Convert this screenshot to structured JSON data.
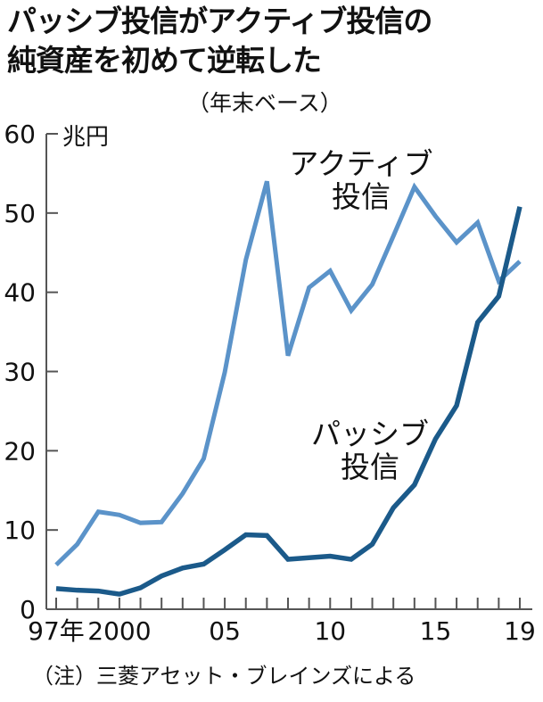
{
  "chart_data": {
    "type": "line",
    "title": [
      "パッシブ投信がアクティブ投信の",
      "純資産を初めて逆転した"
    ],
    "subtitle": "（年末ベース）",
    "ylabel": "兆円",
    "ylim": [
      0,
      60
    ],
    "yticks": [
      0,
      10,
      20,
      30,
      40,
      50,
      60
    ],
    "x": [
      1997,
      1998,
      1999,
      2000,
      2001,
      2002,
      2003,
      2004,
      2005,
      2006,
      2007,
      2008,
      2009,
      2010,
      2011,
      2012,
      2013,
      2014,
      2015,
      2016,
      2017,
      2018,
      2019
    ],
    "xtick_labels": [
      {
        "year": 1997,
        "label": "97年"
      },
      {
        "year": 2000,
        "label": "2000"
      },
      {
        "year": 2005,
        "label": "05"
      },
      {
        "year": 2010,
        "label": "10"
      },
      {
        "year": 2015,
        "label": "15"
      },
      {
        "year": 2019,
        "label": "19"
      }
    ],
    "grid": false,
    "series": [
      {
        "name": "アクティブ投信",
        "label_lines": [
          "アクティブ",
          "投信"
        ],
        "color": "#5b93c9",
        "values": [
          5.6,
          8.2,
          12.3,
          11.9,
          10.9,
          11.0,
          14.6,
          19.0,
          29.9,
          44.1,
          54.0,
          32.0,
          40.6,
          42.7,
          37.7,
          41.0,
          47.1,
          53.3,
          49.6,
          46.3,
          48.8,
          41.4,
          43.9
        ]
      },
      {
        "name": "パッシブ投信",
        "label_lines": [
          "パッシブ",
          "投信"
        ],
        "color": "#1b5a8a",
        "values": [
          2.6,
          2.4,
          2.3,
          1.9,
          2.7,
          4.2,
          5.2,
          5.7,
          7.5,
          9.4,
          9.3,
          6.3,
          6.5,
          6.7,
          6.3,
          8.2,
          12.8,
          15.7,
          21.5,
          25.7,
          36.2,
          39.5,
          50.8
        ]
      }
    ],
    "note": "（注）三菱アセット・ブレインズによる"
  }
}
